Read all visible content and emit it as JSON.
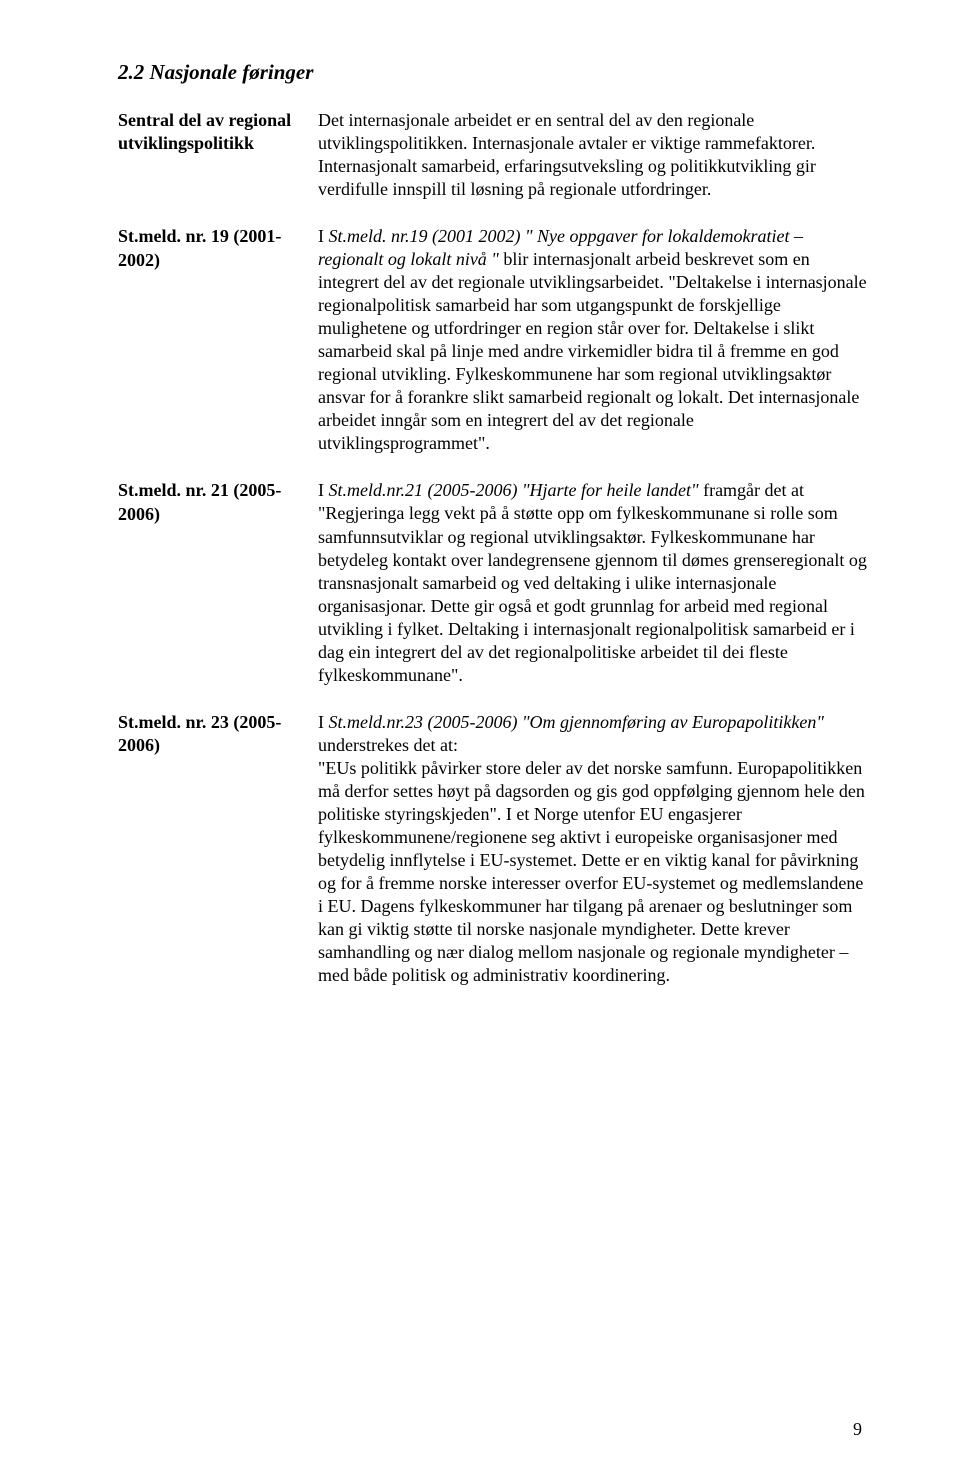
{
  "heading": "2.2  Nasjonale føringer",
  "rows": [
    {
      "label": "Sentral del av regional utviklingspolitikk",
      "body_parts": [
        {
          "t": "Det internasjonale arbeidet er en sentral del av den regionale utviklingspolitikken. Internasjonale avtaler er viktige rammefaktorer. Internasjonalt samarbeid, erfaringsutveksling og politikkutvikling gir verdifulle innspill til løsning på regionale utfordringer."
        }
      ]
    },
    {
      "label": "St.meld. nr. 19 (2001-2002)",
      "body_parts": [
        {
          "t": "I "
        },
        {
          "t": "St.meld. nr.19 (2001 2002) \" Nye oppgaver for lokaldemokratiet – regionalt og lokalt nivå \"",
          "italic": true
        },
        {
          "t": " blir internasjonalt arbeid beskrevet som en integrert del av det regionale utviklingsarbeidet. "
        },
        {
          "t": "\"Deltakelse i internasjonale regionalpolitisk samarbeid har som utgangspunkt de forskjellige mulighetene og utfordringer en region står over for. Deltakelse i slikt samarbeid skal på linje med andre virkemidler bidra til å fremme en god regional utvikling. Fylkeskommunene har som regional utviklingsaktør ansvar for å forankre slikt samarbeid regionalt og lokalt. Det internasjonale arbeidet inngår som en integrert del av det regionale utviklingsprogrammet\"."
        }
      ]
    },
    {
      "label": "St.meld. nr. 21 (2005-2006)",
      "body_parts": [
        {
          "t": "I "
        },
        {
          "t": "St.meld.nr.21 (2005-2006) \"Hjarte for heile landet\"",
          "italic": true
        },
        {
          "t": " framgår det at \"Regjeringa legg vekt på å støtte opp om fylkeskommunane si rolle som samfunnsutviklar og regional utviklingsaktør. Fylkeskommunane har betydeleg kontakt over landegrensene gjennom til dømes grenseregionalt og transnasjonalt samarbeid og ved deltaking i ulike internasjonale organisasjonar. Dette gir også et godt grunnlag for arbeid med regional utvikling i fylket. Deltaking i internasjonalt regionalpolitisk samarbeid er i dag ein integrert del av det regionalpolitiske arbeidet til dei fleste fylkeskommunane\"."
        }
      ]
    },
    {
      "label": "St.meld. nr. 23 (2005-2006)",
      "body_parts": [
        {
          "t": "I "
        },
        {
          "t": "St.meld.nr.23 (2005-2006) \"Om gjennomføring av Europapolitikken\"",
          "italic": true
        },
        {
          "t": " understrekes det at:"
        },
        {
          "br": true
        },
        {
          "t": "\"EUs politikk påvirker store deler av det norske samfunn. Europapolitikken må derfor settes høyt på dagsorden og gis god oppfølging gjennom hele den politiske styringskjeden\". I et Norge utenfor EU engasjerer fylkeskommunene/regionene seg aktivt i europeiske organisasjoner med betydelig innflytelse i EU-systemet. Dette er en viktig kanal for påvirkning og for å fremme norske interesser overfor EU-systemet og medlemslandene i EU. Dagens fylkeskommuner har tilgang på arenaer og beslutninger som kan gi viktig støtte til norske nasjonale myndigheter. Dette krever samhandling og nær dialog mellom nasjonale og regionale myndigheter – med både politisk og administrativ koordinering."
        }
      ]
    }
  ],
  "page_number": "9"
}
